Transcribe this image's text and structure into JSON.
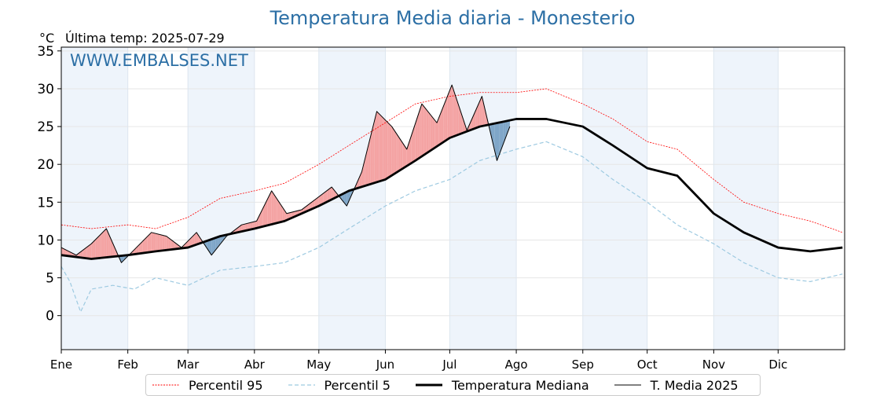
{
  "chart_data": {
    "type": "line",
    "title": "Temperatura Media diaria - Monesterio",
    "unit_label": "°C",
    "last_temp_label": "Última temp: 2025-07-29",
    "watermark": "WWW.EMBALSES.NET",
    "xlabel": "",
    "ylabel": "",
    "ylim": [
      -4.5,
      35.5
    ],
    "y_ticks": [
      0,
      5,
      10,
      15,
      20,
      25,
      30,
      35
    ],
    "months": [
      "Ene",
      "Feb",
      "Mar",
      "Abr",
      "May",
      "Jun",
      "Jul",
      "Ago",
      "Sep",
      "Oct",
      "Nov",
      "Dic"
    ],
    "grid": true,
    "legend_position": "bottom",
    "colors": {
      "p95": "#ff0000",
      "p5": "#9ecae1",
      "median": "#000000",
      "current": "#000000",
      "above_fill": "#f4a3a3",
      "above_fill_hot": "#ef5a5a",
      "below_fill": "#7fa6c8",
      "title": "#2c6fa5",
      "band": "#eef4fb"
    },
    "series": [
      {
        "name": "Percentil 95",
        "style": "dotted-thin",
        "x_day": [
          1,
          15,
          32,
          45,
          60,
          75,
          91,
          105,
          121,
          135,
          152,
          166,
          182,
          196,
          213,
          227,
          244,
          258,
          274,
          288,
          305,
          319,
          335,
          350,
          365
        ],
        "values": [
          12.0,
          11.5,
          12.0,
          11.5,
          13.0,
          15.5,
          16.5,
          17.5,
          20.0,
          22.5,
          25.5,
          28.0,
          29.0,
          29.5,
          29.5,
          30.0,
          28.0,
          26.0,
          23.0,
          22.0,
          18.0,
          15.0,
          13.5,
          12.5,
          11.0
        ]
      },
      {
        "name": "Percentil 5",
        "style": "dashed",
        "x_day": [
          1,
          5,
          10,
          15,
          25,
          35,
          45,
          60,
          75,
          91,
          105,
          121,
          135,
          152,
          166,
          182,
          196,
          213,
          227,
          244,
          258,
          274,
          288,
          305,
          319,
          335,
          350,
          365
        ],
        "values": [
          6.5,
          4.5,
          0.5,
          3.5,
          4.0,
          3.5,
          5.0,
          4.0,
          6.0,
          6.5,
          7.0,
          9.0,
          11.5,
          14.5,
          16.5,
          18.0,
          20.5,
          22.0,
          23.0,
          21.0,
          18.0,
          15.0,
          12.0,
          9.5,
          7.0,
          5.0,
          4.5,
          5.5
        ]
      },
      {
        "name": "Temperatura Mediana",
        "style": "thick",
        "x_day": [
          1,
          15,
          32,
          45,
          60,
          75,
          91,
          105,
          121,
          135,
          152,
          166,
          182,
          196,
          213,
          227,
          244,
          258,
          274,
          288,
          305,
          319,
          335,
          350,
          365
        ],
        "values": [
          8.0,
          7.5,
          8.0,
          8.5,
          9.0,
          10.5,
          11.5,
          12.5,
          14.5,
          16.5,
          18.0,
          20.5,
          23.5,
          25.0,
          26.0,
          26.0,
          25.0,
          22.5,
          19.5,
          18.5,
          13.5,
          11.0,
          9.0,
          8.5,
          9.0
        ]
      },
      {
        "name": "T. Media 2025",
        "style": "thin",
        "x_day": [
          1,
          8,
          15,
          22,
          29,
          36,
          43,
          50,
          57,
          64,
          71,
          78,
          85,
          92,
          99,
          106,
          113,
          120,
          127,
          134,
          141,
          148,
          155,
          162,
          169,
          176,
          183,
          190,
          197,
          204,
          210
        ],
        "values": [
          9.0,
          8.0,
          9.5,
          11.5,
          7.0,
          9.0,
          11.0,
          10.5,
          9.0,
          11.0,
          8.0,
          10.5,
          12.0,
          12.5,
          16.5,
          13.5,
          14.0,
          15.5,
          17.0,
          14.5,
          19.0,
          27.0,
          25.0,
          22.0,
          28.0,
          25.5,
          30.5,
          24.5,
          29.0,
          20.5,
          25.0
        ]
      }
    ]
  }
}
